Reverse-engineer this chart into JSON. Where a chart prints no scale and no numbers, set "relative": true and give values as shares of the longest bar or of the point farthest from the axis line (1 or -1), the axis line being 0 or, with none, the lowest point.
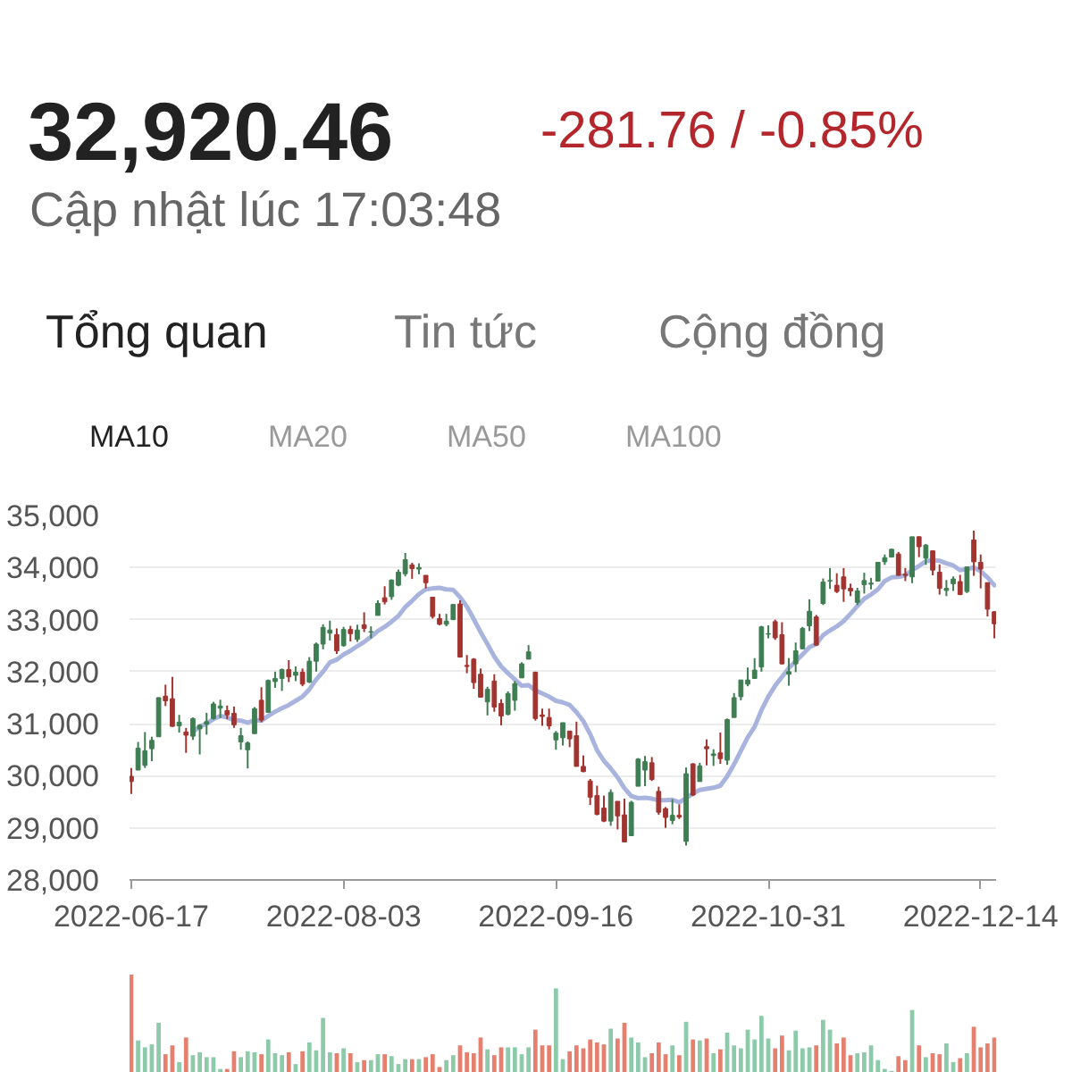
{
  "chart_data": [
    {
      "type": "candlestick",
      "annotations": [
        "32,920.46",
        "-281.76 / -0.85%",
        "Cập nhật lúc 17:03:48",
        "Tổng quan",
        "Tin tức",
        "Cộng đồng"
      ],
      "categories": [
        "2022-06-17",
        null,
        null,
        null,
        null,
        null,
        null,
        null,
        null,
        null,
        null,
        null,
        null,
        null,
        null,
        null,
        null,
        null,
        null,
        null,
        null,
        null,
        null,
        null,
        null,
        null,
        null,
        null,
        null,
        null,
        null,
        "2022-08-03",
        null,
        null,
        null,
        null,
        null,
        null,
        null,
        null,
        null,
        null,
        null,
        null,
        null,
        null,
        null,
        null,
        null,
        null,
        null,
        null,
        null,
        null,
        null,
        null,
        null,
        null,
        null,
        null,
        null,
        null,
        "2022-09-16",
        null,
        null,
        null,
        null,
        null,
        null,
        null,
        null,
        null,
        null,
        null,
        null,
        null,
        null,
        null,
        null,
        null,
        null,
        null,
        null,
        null,
        null,
        null,
        null,
        null,
        null,
        null,
        null,
        null,
        null,
        "2022-10-31",
        null,
        null,
        null,
        null,
        null,
        null,
        null,
        null,
        null,
        null,
        null,
        null,
        null,
        null,
        null,
        null,
        null,
        null,
        null,
        null,
        null,
        null,
        null,
        null,
        null,
        null,
        null,
        null,
        null,
        null,
        "2022-12-14",
        null,
        null
      ],
      "ohlc": [
        [
          29990,
          30150,
          29650,
          29890
        ],
        [
          30110,
          30650,
          30110,
          30530
        ],
        [
          30200,
          30840,
          30150,
          30480
        ],
        [
          30520,
          30750,
          30280,
          30680
        ],
        [
          30750,
          31510,
          30750,
          31500
        ],
        [
          31530,
          31750,
          31340,
          31440
        ],
        [
          31480,
          31900,
          30940,
          30950
        ],
        [
          30960,
          31170,
          30830,
          31030
        ],
        [
          30840,
          30920,
          30440,
          30780
        ],
        [
          30760,
          31120,
          30690,
          31100
        ],
        [
          30900,
          30990,
          30410,
          30970
        ],
        [
          30990,
          31210,
          30790,
          31040
        ],
        [
          31100,
          31420,
          31080,
          31380
        ],
        [
          31300,
          31460,
          31110,
          31340
        ],
        [
          31250,
          31350,
          31090,
          31170
        ],
        [
          31200,
          31330,
          30920,
          30980
        ],
        [
          30650,
          30920,
          30500,
          30770
        ],
        [
          30500,
          30660,
          30140,
          30630
        ],
        [
          30810,
          31320,
          30810,
          31290
        ],
        [
          31450,
          31700,
          31030,
          31070
        ],
        [
          31220,
          31850,
          31220,
          31830
        ],
        [
          31810,
          32000,
          31690,
          31870
        ],
        [
          31870,
          32060,
          31630,
          32040
        ],
        [
          32040,
          32220,
          31800,
          31900
        ],
        [
          31930,
          32100,
          31820,
          31990
        ],
        [
          31990,
          32060,
          31720,
          31760
        ],
        [
          31800,
          32280,
          31780,
          32200
        ],
        [
          32200,
          32560,
          32000,
          32530
        ],
        [
          32530,
          32910,
          32430,
          32850
        ],
        [
          32740,
          32980,
          32600,
          32800
        ],
        [
          32710,
          32830,
          32340,
          32400
        ],
        [
          32500,
          32860,
          32480,
          32810
        ],
        [
          32810,
          32880,
          32580,
          32730
        ],
        [
          32620,
          32900,
          32570,
          32800
        ],
        [
          32900,
          33140,
          32760,
          32830
        ],
        [
          32760,
          32870,
          32640,
          32770
        ],
        [
          33080,
          33370,
          33080,
          33310
        ],
        [
          33420,
          33640,
          33290,
          33340
        ],
        [
          33440,
          33770,
          33380,
          33760
        ],
        [
          33660,
          33960,
          33640,
          33910
        ],
        [
          33880,
          34280,
          33830,
          34150
        ],
        [
          34050,
          34090,
          33780,
          33980
        ],
        [
          33970,
          34080,
          33870,
          34000
        ],
        [
          33850,
          33850,
          33600,
          33710
        ],
        [
          33430,
          33430,
          33020,
          33060
        ],
        [
          33020,
          33110,
          32890,
          32910
        ],
        [
          32910,
          33110,
          32870,
          32970
        ],
        [
          33000,
          33300,
          32990,
          33290
        ],
        [
          33300,
          33370,
          32270,
          32280
        ],
        [
          32120,
          32320,
          31970,
          32100
        ],
        [
          32240,
          32260,
          31670,
          31790
        ],
        [
          31950,
          32060,
          31500,
          31510
        ],
        [
          31420,
          31710,
          31160,
          31660
        ],
        [
          31820,
          31950,
          31230,
          31320
        ],
        [
          31390,
          31470,
          30970,
          31150
        ],
        [
          31180,
          31620,
          31160,
          31580
        ],
        [
          31450,
          31820,
          31250,
          31770
        ],
        [
          31880,
          32180,
          31880,
          32150
        ],
        [
          32240,
          32510,
          32240,
          32380
        ],
        [
          31990,
          32000,
          31060,
          31100
        ],
        [
          31170,
          31290,
          30960,
          31140
        ],
        [
          31120,
          31290,
          30890,
          30960
        ],
        [
          30690,
          30860,
          30500,
          30820
        ],
        [
          30730,
          31020,
          30580,
          31020
        ],
        [
          30860,
          30860,
          30550,
          30710
        ],
        [
          30770,
          31040,
          30180,
          30180
        ],
        [
          30180,
          30390,
          30070,
          30080
        ],
        [
          29900,
          29940,
          29440,
          29590
        ],
        [
          29620,
          29810,
          29240,
          29260
        ],
        [
          29380,
          29620,
          29110,
          29130
        ],
        [
          29130,
          29740,
          29040,
          29680
        ],
        [
          29510,
          29510,
          28970,
          29230
        ],
        [
          29250,
          29560,
          28720,
          28730
        ],
        [
          28850,
          29520,
          28840,
          29490
        ],
        [
          29800,
          30340,
          29800,
          30320
        ],
        [
          30110,
          30380,
          29800,
          30270
        ],
        [
          30250,
          30360,
          29900,
          29930
        ],
        [
          29700,
          29790,
          29250,
          29300
        ],
        [
          29370,
          29400,
          29000,
          29200
        ],
        [
          29140,
          29550,
          29070,
          29240
        ],
        [
          29240,
          29450,
          29170,
          29210
        ],
        [
          28740,
          30160,
          28660,
          30040
        ],
        [
          30230,
          30240,
          29610,
          29630
        ],
        [
          29890,
          30250,
          29890,
          30190
        ],
        [
          30560,
          30700,
          30200,
          30520
        ],
        [
          30390,
          30510,
          30190,
          30420
        ],
        [
          30440,
          30830,
          30230,
          30330
        ],
        [
          30300,
          31100,
          30210,
          31080
        ],
        [
          31120,
          31590,
          31120,
          31500
        ],
        [
          31520,
          31840,
          31450,
          31840
        ],
        [
          31760,
          32080,
          31720,
          31840
        ],
        [
          31870,
          32260,
          31860,
          32030
        ],
        [
          32090,
          32880,
          32000,
          32860
        ],
        [
          32720,
          32890,
          32640,
          32730
        ],
        [
          32960,
          33000,
          32610,
          32650
        ],
        [
          32710,
          32950,
          32140,
          32150
        ],
        [
          31950,
          32260,
          31730,
          32000
        ],
        [
          32150,
          32560,
          31990,
          32400
        ],
        [
          32440,
          32860,
          32430,
          32830
        ],
        [
          32880,
          33390,
          32780,
          33160
        ],
        [
          33050,
          33090,
          32500,
          32510
        ],
        [
          33310,
          33790,
          33280,
          33720
        ],
        [
          33740,
          33990,
          33590,
          33750
        ],
        [
          33660,
          33890,
          33510,
          33540
        ],
        [
          33820,
          33990,
          33340,
          33590
        ],
        [
          33600,
          33690,
          33450,
          33550
        ],
        [
          33330,
          33610,
          33280,
          33550
        ],
        [
          33670,
          33900,
          33500,
          33750
        ],
        [
          33680,
          33800,
          33580,
          33700
        ],
        [
          33740,
          34100,
          33730,
          34100
        ],
        [
          34110,
          34250,
          34050,
          34190
        ],
        [
          34200,
          34360,
          34200,
          34350
        ],
        [
          34260,
          34300,
          33840,
          33850
        ],
        [
          33870,
          33990,
          33740,
          33850
        ],
        [
          33820,
          34590,
          33700,
          34590
        ],
        [
          34590,
          34600,
          34200,
          34400
        ],
        [
          34180,
          34450,
          34050,
          34430
        ],
        [
          34320,
          34330,
          33850,
          33950
        ],
        [
          33910,
          34060,
          33480,
          33600
        ],
        [
          33560,
          33760,
          33450,
          33600
        ],
        [
          33690,
          33830,
          33550,
          33780
        ],
        [
          33730,
          33860,
          33470,
          33480
        ],
        [
          33540,
          34010,
          33510,
          34010
        ],
        [
          34530,
          34710,
          33840,
          34110
        ],
        [
          34100,
          34250,
          33600,
          33970
        ],
        [
          33710,
          33710,
          33060,
          33200
        ],
        [
          33150,
          33160,
          32640,
          32920
        ]
      ],
      "colors": [
        "#a23430",
        "#3f7d53",
        "#3f7d53",
        "#3f7d53",
        "#3f7d53",
        "#a23430",
        "#a23430",
        "#3f7d53",
        "#a23430",
        "#3f7d53",
        "#3f7d53",
        "#3f7d53",
        "#3f7d53",
        "#3f7d53",
        "#a23430",
        "#a23430",
        "#3f7d53",
        "#3f7d53",
        "#3f7d53",
        "#a23430",
        "#3f7d53",
        "#3f7d53",
        "#3f7d53",
        "#a23430",
        "#3f7d53",
        "#a23430",
        "#3f7d53",
        "#3f7d53",
        "#3f7d53",
        "#3f7d53",
        "#a23430",
        "#3f7d53",
        "#a23430",
        "#3f7d53",
        "#a23430",
        "#3f7d53",
        "#3f7d53",
        "#a23430",
        "#3f7d53",
        "#3f7d53",
        "#3f7d53",
        "#a23430",
        "#3f7d53",
        "#a23430",
        "#a23430",
        "#a23430",
        "#3f7d53",
        "#3f7d53",
        "#a23430",
        "#a23430",
        "#a23430",
        "#a23430",
        "#3f7d53",
        "#a23430",
        "#a23430",
        "#3f7d53",
        "#3f7d53",
        "#3f7d53",
        "#3f7d53",
        "#a23430",
        "#a23430",
        "#a23430",
        "#3f7d53",
        "#3f7d53",
        "#a23430",
        "#a23430",
        "#a23430",
        "#a23430",
        "#a23430",
        "#a23430",
        "#3f7d53",
        "#a23430",
        "#a23430",
        "#3f7d53",
        "#3f7d53",
        "#3f7d53",
        "#a23430",
        "#a23430",
        "#a23430",
        "#3f7d53",
        "#a23430",
        "#3f7d53",
        "#a23430",
        "#3f7d53",
        "#a23430",
        "#3f7d53",
        "#a23430",
        "#3f7d53",
        "#3f7d53",
        "#3f7d53",
        "#3f7d53",
        "#3f7d53",
        "#3f7d53",
        "#3f7d53",
        "#a23430",
        "#a23430",
        "#3f7d53",
        "#3f7d53",
        "#3f7d53",
        "#3f7d53",
        "#a23430",
        "#3f7d53",
        "#3f7d53",
        "#a23430",
        "#a23430",
        "#a23430",
        "#3f7d53",
        "#3f7d53",
        "#3f7d53",
        "#3f7d53",
        "#3f7d53",
        "#3f7d53",
        "#a23430",
        "#a23430",
        "#3f7d53",
        "#a23430",
        "#3f7d53",
        "#a23430",
        "#a23430",
        "#3f7d53",
        "#3f7d53",
        "#a23430",
        "#3f7d53",
        "#a23430",
        "#a23430",
        "#a23430",
        "#a23430"
      ],
      "series": [
        {
          "type": "line",
          "name": "MA10",
          "color": "#a9b4de",
          "values": [
            null,
            null,
            null,
            null,
            null,
            null,
            null,
            null,
            null,
            30840,
            30950,
            31000,
            31090,
            31150,
            31120,
            31070,
            31060,
            31020,
            31070,
            31060,
            31150,
            31230,
            31300,
            31360,
            31440,
            31520,
            31660,
            31850,
            32000,
            32180,
            32230,
            32330,
            32400,
            32490,
            32570,
            32670,
            32780,
            32860,
            32960,
            33070,
            33240,
            33360,
            33490,
            33580,
            33600,
            33610,
            33580,
            33570,
            33430,
            33250,
            33010,
            32760,
            32530,
            32290,
            32100,
            31970,
            31850,
            31730,
            31740,
            31640,
            31580,
            31520,
            31440,
            31410,
            31360,
            31220,
            31050,
            30800,
            30490,
            30290,
            30140,
            29970,
            29760,
            29610,
            29570,
            29580,
            29560,
            29530,
            29530,
            29540,
            29490,
            29570,
            29660,
            29730,
            29750,
            29770,
            29810,
            29990,
            30220,
            30480,
            30740,
            30940,
            31260,
            31520,
            31730,
            31900,
            32070,
            32200,
            32330,
            32470,
            32530,
            32700,
            32790,
            32870,
            32970,
            33110,
            33260,
            33400,
            33480,
            33580,
            33740,
            33810,
            33820,
            33850,
            33950,
            34030,
            34120,
            34140,
            34130,
            34080,
            34040,
            33950,
            33970,
            34000,
            33930,
            33810,
            33660
          ]
        },
        {
          "type": "line",
          "name": "MA20",
          "color": "#9e9e9e",
          "values": [
            null,
            null,
            null,
            null,
            null,
            null,
            null,
            null,
            null,
            null,
            null,
            null,
            null,
            null,
            null,
            null,
            null,
            null,
            null,
            null,
            null,
            null,
            null,
            null,
            null,
            null,
            null,
            null,
            null,
            null,
            null,
            null,
            null,
            null,
            null,
            null,
            null,
            null,
            null,
            null,
            null,
            null,
            null,
            null,
            null,
            null,
            null,
            null,
            null,
            null,
            null,
            null,
            null,
            null,
            null,
            null,
            null,
            null,
            null,
            null,
            null,
            null,
            null,
            null,
            null,
            null,
            null,
            null,
            null,
            null,
            null,
            null,
            null,
            null,
            null,
            null,
            null,
            null,
            null,
            null,
            null,
            null,
            null,
            null,
            null,
            null,
            null,
            null,
            null,
            null,
            null,
            null,
            null,
            null,
            null,
            null,
            null,
            null,
            null,
            null,
            null,
            null,
            null,
            null,
            null,
            null,
            null,
            null,
            null,
            null,
            null,
            null,
            null,
            null,
            null,
            null,
            null,
            null,
            null,
            null,
            null,
            null,
            null,
            null,
            null,
            null,
            null
          ]
        },
        {
          "type": "line",
          "name": "MA50",
          "color": "#9e9e9e",
          "values": [
            null,
            null,
            null,
            null,
            null,
            null,
            null,
            null,
            null,
            null,
            null,
            null,
            null,
            null,
            null,
            null,
            null,
            null,
            null,
            null,
            null,
            null,
            null,
            null,
            null,
            null,
            null,
            null,
            null,
            null,
            null,
            null,
            null,
            null,
            null,
            null,
            null,
            null,
            null,
            null,
            null,
            null,
            null,
            null,
            null,
            null,
            null,
            null,
            null,
            null,
            null,
            null,
            null,
            null,
            null,
            null,
            null,
            null,
            null,
            null,
            null,
            null,
            null,
            null,
            null,
            null,
            null,
            null,
            null,
            null,
            null,
            null,
            null,
            null,
            null,
            null,
            null,
            null,
            null,
            null,
            null,
            null,
            null,
            null,
            null,
            null,
            null,
            null,
            null,
            null,
            null,
            null,
            null,
            null,
            null,
            null,
            null,
            null,
            null,
            null,
            null,
            null,
            null,
            null,
            null,
            null,
            null,
            null,
            null,
            null,
            null,
            null,
            null,
            null,
            null,
            null,
            null,
            null,
            null,
            null,
            null,
            null,
            null,
            null,
            null,
            null,
            null
          ]
        },
        {
          "type": "line",
          "name": "MA100",
          "color": "#9e9e9e",
          "values": [
            null,
            null,
            null,
            null,
            null,
            null,
            null,
            null,
            null,
            null,
            null,
            null,
            null,
            null,
            null,
            null,
            null,
            null,
            null,
            null,
            null,
            null,
            null,
            null,
            null,
            null,
            null,
            null,
            null,
            null,
            null,
            null,
            null,
            null,
            null,
            null,
            null,
            null,
            null,
            null,
            null,
            null,
            null,
            null,
            null,
            null,
            null,
            null,
            null,
            null,
            null,
            null,
            null,
            null,
            null,
            null,
            null,
            null,
            null,
            null,
            null,
            null,
            null,
            null,
            null,
            null,
            null,
            null,
            null,
            null,
            null,
            null,
            null,
            null,
            null,
            null,
            null,
            null,
            null,
            null,
            null,
            null,
            null,
            null,
            null,
            null,
            null,
            null,
            null,
            null,
            null,
            null,
            null,
            null,
            null,
            null,
            null,
            null,
            null,
            null,
            null,
            null,
            null,
            null,
            null,
            null,
            null,
            null,
            null,
            null,
            null,
            null,
            null,
            null,
            null,
            null,
            null,
            null,
            null,
            null,
            null,
            null,
            null,
            null,
            null,
            null,
            null
          ]
        }
      ],
      "ylim": [
        28000,
        35000
      ],
      "yticks": [
        {
          "value": 28000,
          "label": "28,000"
        },
        {
          "value": 29000,
          "label": "29,000"
        },
        {
          "value": 30000,
          "label": "30,000"
        },
        {
          "value": 31000,
          "label": "31,000"
        },
        {
          "value": 32000,
          "label": "32,000"
        },
        {
          "value": 33000,
          "label": "33,000"
        },
        {
          "value": 34000,
          "label": "34,000"
        },
        {
          "value": 35000,
          "label": "35,000"
        }
      ],
      "grid": "y",
      "legend": "top left"
    },
    {
      "type": "bar",
      "relative": true,
      "categories": [
        null,
        null,
        null,
        null,
        null,
        null,
        null,
        null,
        null,
        null,
        null,
        null,
        null,
        null,
        null,
        null,
        null,
        null,
        null,
        null,
        null,
        null,
        null,
        null,
        null,
        null,
        null,
        null,
        null,
        null,
        null,
        null,
        null,
        null,
        null,
        null,
        null,
        null,
        null,
        null,
        null,
        null,
        null,
        null,
        null,
        null,
        null,
        null,
        null,
        null,
        null,
        null,
        null,
        null,
        null,
        null,
        null,
        null,
        null,
        null,
        null,
        null,
        null,
        null,
        null,
        null,
        null,
        null,
        null,
        null,
        null,
        null,
        null,
        null,
        null,
        null,
        null,
        null,
        null,
        null,
        null,
        null,
        null,
        null,
        null,
        null,
        null,
        null,
        null,
        null,
        null,
        null,
        null,
        null,
        null,
        null,
        null,
        null,
        null,
        null,
        null,
        null,
        null,
        null,
        null,
        null,
        null,
        null,
        null,
        null,
        null,
        null,
        null,
        null,
        null,
        null,
        null,
        null,
        null,
        null,
        null,
        null,
        null,
        null,
        null,
        null,
        null
      ],
      "values": [
        1.0,
        0.33,
        0.26,
        0.29,
        0.51,
        0.19,
        0.28,
        0.11,
        0.36,
        0.18,
        0.21,
        0.16,
        0.16,
        0.04,
        0.04,
        0.22,
        0.16,
        0.22,
        0.21,
        0.19,
        0.34,
        0.2,
        0.18,
        0.21,
        0.09,
        0.22,
        0.31,
        0.23,
        0.56,
        0.21,
        0.2,
        0.25,
        0.2,
        0.11,
        0.13,
        0.13,
        0.19,
        0.19,
        0.17,
        0.09,
        0.14,
        0.14,
        0.14,
        0.16,
        0.19,
        0.06,
        0.13,
        0.18,
        0.28,
        0.21,
        0.2,
        0.36,
        0.24,
        0.18,
        0.26,
        0.26,
        0.26,
        0.19,
        0.26,
        0.44,
        0.28,
        0.28,
        0.86,
        0.14,
        0.22,
        0.28,
        0.25,
        0.34,
        0.31,
        0.29,
        0.45,
        0.35,
        0.51,
        0.36,
        0.31,
        0.16,
        0.2,
        0.31,
        0.19,
        0.28,
        0.18,
        0.52,
        0.34,
        0.33,
        0.35,
        0.2,
        0.24,
        0.41,
        0.28,
        0.25,
        0.44,
        0.34,
        0.58,
        0.35,
        0.25,
        0.38,
        0.23,
        0.43,
        0.25,
        0.26,
        0.28,
        0.54,
        0.44,
        0.3,
        0.36,
        0.18,
        0.2,
        0.21,
        0.28,
        0.13,
        0.04,
        0.02,
        0.17,
        0.13,
        0.64,
        0.28,
        0.16,
        0.2,
        0.19,
        0.3,
        0.11,
        0.15,
        0.2,
        0.47,
        0.26,
        0.3,
        0.36
      ],
      "colors": [
        "#e5806f",
        "#8ccaa9",
        "#8ccaa9",
        "#8ccaa9",
        "#8ccaa9",
        "#e5806f",
        "#e5806f",
        "#8ccaa9",
        "#e5806f",
        "#8ccaa9",
        "#8ccaa9",
        "#8ccaa9",
        "#8ccaa9",
        "#8ccaa9",
        "#e5806f",
        "#e5806f",
        "#8ccaa9",
        "#8ccaa9",
        "#8ccaa9",
        "#e5806f",
        "#8ccaa9",
        "#8ccaa9",
        "#8ccaa9",
        "#e5806f",
        "#8ccaa9",
        "#e5806f",
        "#8ccaa9",
        "#8ccaa9",
        "#8ccaa9",
        "#8ccaa9",
        "#e5806f",
        "#8ccaa9",
        "#e5806f",
        "#8ccaa9",
        "#e5806f",
        "#8ccaa9",
        "#8ccaa9",
        "#e5806f",
        "#8ccaa9",
        "#8ccaa9",
        "#8ccaa9",
        "#e5806f",
        "#8ccaa9",
        "#e5806f",
        "#e5806f",
        "#e5806f",
        "#8ccaa9",
        "#8ccaa9",
        "#e5806f",
        "#e5806f",
        "#e5806f",
        "#e5806f",
        "#8ccaa9",
        "#e5806f",
        "#e5806f",
        "#8ccaa9",
        "#8ccaa9",
        "#8ccaa9",
        "#8ccaa9",
        "#e5806f",
        "#e5806f",
        "#e5806f",
        "#8ccaa9",
        "#8ccaa9",
        "#e5806f",
        "#e5806f",
        "#e5806f",
        "#e5806f",
        "#e5806f",
        "#e5806f",
        "#8ccaa9",
        "#e5806f",
        "#e5806f",
        "#8ccaa9",
        "#8ccaa9",
        "#8ccaa9",
        "#e5806f",
        "#e5806f",
        "#e5806f",
        "#8ccaa9",
        "#e5806f",
        "#8ccaa9",
        "#e5806f",
        "#8ccaa9",
        "#e5806f",
        "#8ccaa9",
        "#e5806f",
        "#8ccaa9",
        "#8ccaa9",
        "#8ccaa9",
        "#8ccaa9",
        "#8ccaa9",
        "#8ccaa9",
        "#8ccaa9",
        "#e5806f",
        "#e5806f",
        "#8ccaa9",
        "#8ccaa9",
        "#8ccaa9",
        "#8ccaa9",
        "#e5806f",
        "#8ccaa9",
        "#8ccaa9",
        "#e5806f",
        "#e5806f",
        "#e5806f",
        "#8ccaa9",
        "#8ccaa9",
        "#8ccaa9",
        "#8ccaa9",
        "#8ccaa9",
        "#8ccaa9",
        "#e5806f",
        "#e5806f",
        "#8ccaa9",
        "#e5806f",
        "#8ccaa9",
        "#e5806f",
        "#e5806f",
        "#8ccaa9",
        "#8ccaa9",
        "#e5806f",
        "#8ccaa9",
        "#e5806f",
        "#e5806f",
        "#e5806f",
        "#e5806f"
      ]
    }
  ]
}
